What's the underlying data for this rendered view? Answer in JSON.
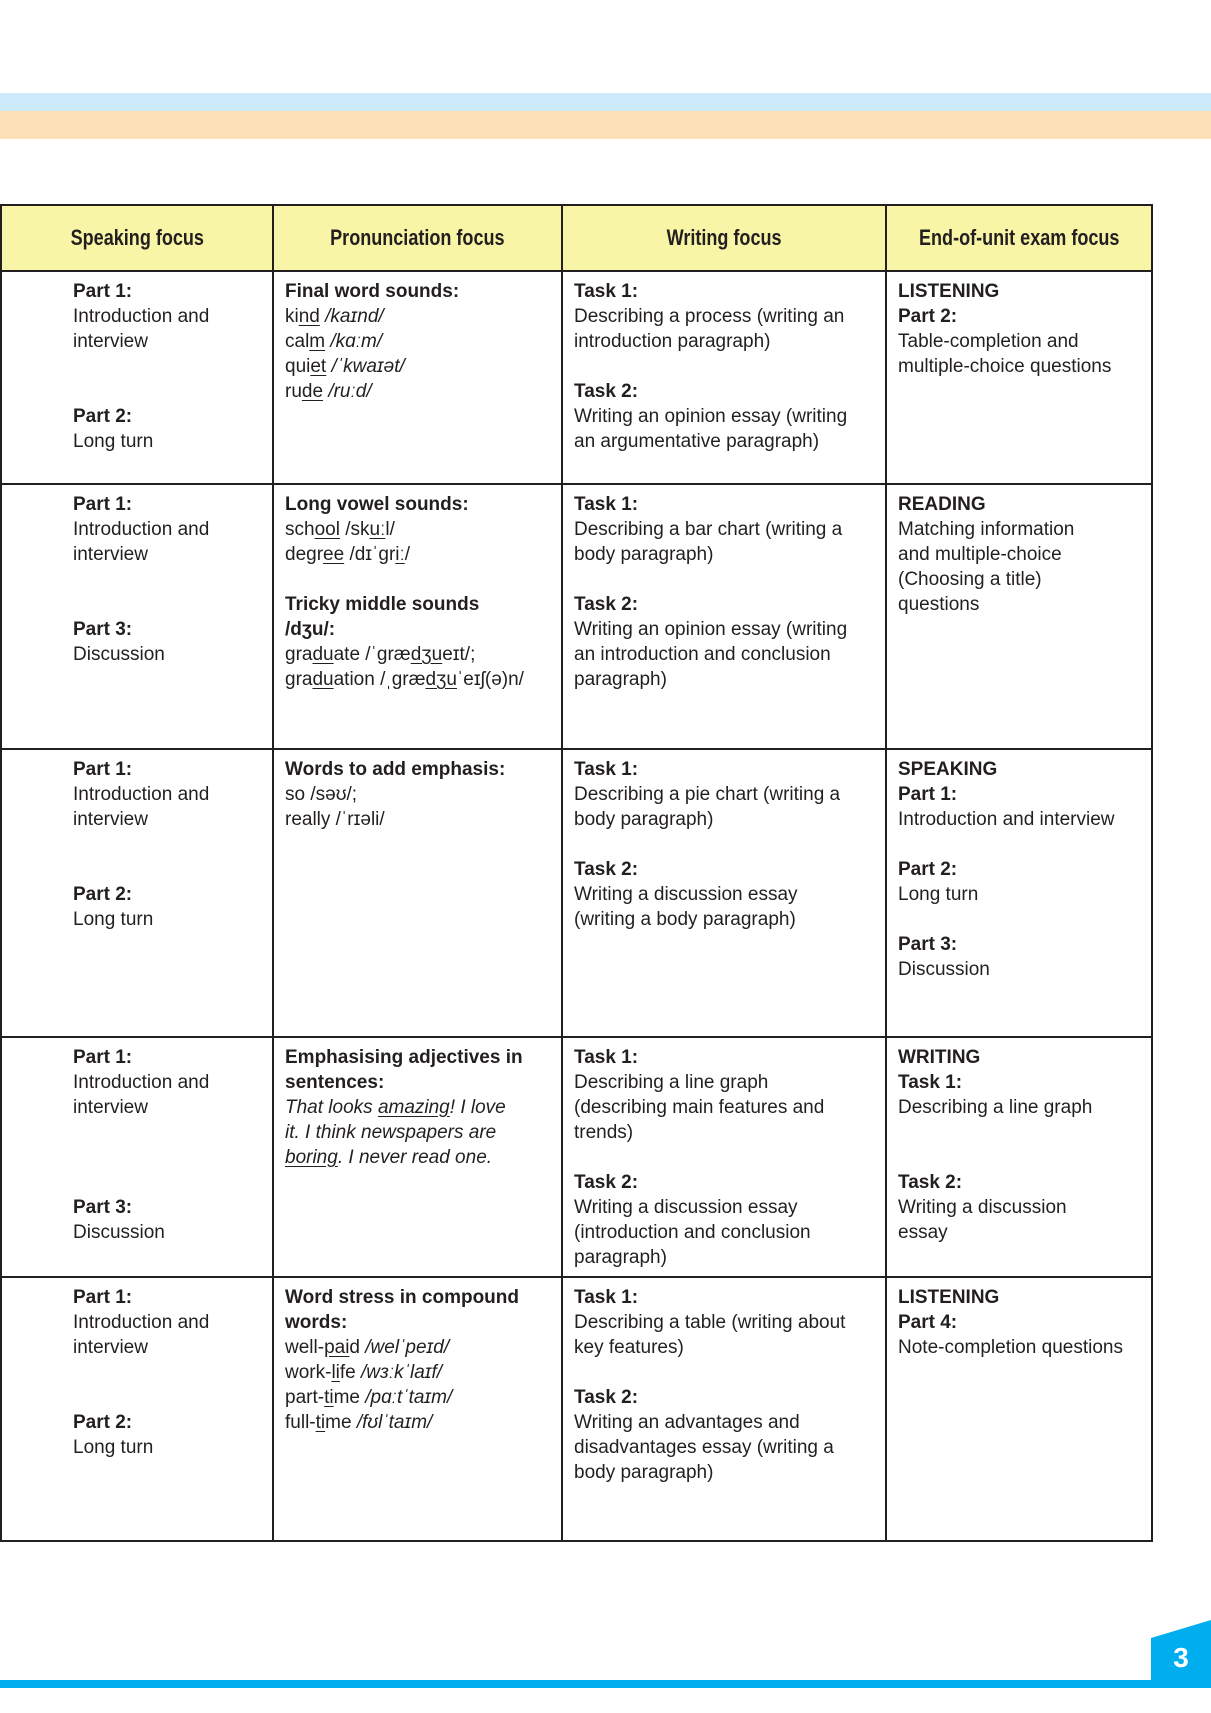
{
  "colors": {
    "band_blue": "#cdeafb",
    "band_peach": "#fde0b6",
    "header_fill": "#f8f5a6",
    "accent": "#00aeef"
  },
  "headers": [
    "Speaking focus",
    "Pronunciation focus",
    "Writing focus",
    "End-of-unit exam focus"
  ],
  "rows": [
    {
      "cells": [
        [
          [
            {
              "t": "Part 1:",
              "b": 1
            }
          ],
          [
            {
              "t": "Introduction and"
            }
          ],
          [
            {
              "t": "interview"
            }
          ],
          [],
          [],
          [
            {
              "t": "Part 2:",
              "b": 1
            }
          ],
          [
            {
              "t": "Long turn"
            }
          ]
        ],
        [
          [
            {
              "t": "Final word sounds:",
              "b": 1
            }
          ],
          [
            {
              "t": "ki"
            },
            {
              "t": "nd",
              "u": 1
            },
            {
              "t": " /kaɪnd/",
              "i": 1
            }
          ],
          [
            {
              "t": "cal"
            },
            {
              "t": "m",
              "u": 1
            },
            {
              "t": " /kɑːm/",
              "i": 1
            }
          ],
          [
            {
              "t": "qui"
            },
            {
              "t": "et",
              "u": 1
            },
            {
              "t": " /ˈkwaɪət/",
              "i": 1
            }
          ],
          [
            {
              "t": "ru"
            },
            {
              "t": "de",
              "u": 1
            },
            {
              "t": " /ruːd/",
              "i": 1
            }
          ]
        ],
        [
          [
            {
              "t": "Task 1:",
              "b": 1
            }
          ],
          [
            {
              "t": "Describing a process (writing an"
            }
          ],
          [
            {
              "t": "introduction paragraph)"
            }
          ],
          [],
          [
            {
              "t": "Task 2:",
              "b": 1
            }
          ],
          [
            {
              "t": "Writing an opinion essay (writing"
            }
          ],
          [
            {
              "t": "an argumentative paragraph)"
            }
          ]
        ],
        [
          [
            {
              "t": "LISTENING",
              "b": 1
            }
          ],
          [
            {
              "t": "Part 2:",
              "b": 1
            }
          ],
          [
            {
              "t": "Table-completion and"
            }
          ],
          [
            {
              "t": "multiple-choice questions"
            }
          ]
        ]
      ]
    },
    {
      "cells": [
        [
          [
            {
              "t": "Part 1:",
              "b": 1
            }
          ],
          [
            {
              "t": "Introduction and"
            }
          ],
          [
            {
              "t": "interview"
            }
          ],
          [],
          [],
          [
            {
              "t": "Part 3:",
              "b": 1
            }
          ],
          [
            {
              "t": "Discussion"
            }
          ]
        ],
        [
          [
            {
              "t": "Long vowel sounds:",
              "b": 1
            }
          ],
          [
            {
              "t": "sch"
            },
            {
              "t": "ool",
              "u": 1
            },
            {
              "t": " /sk"
            },
            {
              "t": "uː",
              "u": 1
            },
            {
              "t": "l/"
            }
          ],
          [
            {
              "t": "degr"
            },
            {
              "t": "ee",
              "u": 1
            },
            {
              "t": " /dɪˈgr"
            },
            {
              "t": "iː",
              "u": 1
            },
            {
              "t": "/"
            }
          ],
          [],
          [
            {
              "t": "Tricky middle sounds",
              "b": 1
            }
          ],
          [
            {
              "t": "/dʒu/:",
              "b": 1
            }
          ],
          [
            {
              "t": "gra"
            },
            {
              "t": "du",
              "u": 1
            },
            {
              "t": "ate /ˈgræ"
            },
            {
              "t": "dʒu",
              "u": 1
            },
            {
              "t": "eɪt/;"
            }
          ],
          [
            {
              "t": "gra"
            },
            {
              "t": "du",
              "u": 1
            },
            {
              "t": "ation /ˌgræ"
            },
            {
              "t": "dʒu",
              "u": 1
            },
            {
              "t": "ˈeɪʃ(ə)n/"
            }
          ]
        ],
        [
          [
            {
              "t": "Task 1:",
              "b": 1
            }
          ],
          [
            {
              "t": "Describing a bar chart (writing a"
            }
          ],
          [
            {
              "t": "body paragraph)"
            }
          ],
          [],
          [
            {
              "t": "Task 2:",
              "b": 1
            }
          ],
          [
            {
              "t": "Writing an opinion essay (writing"
            }
          ],
          [
            {
              "t": "an introduction and conclusion"
            }
          ],
          [
            {
              "t": "paragraph)"
            }
          ]
        ],
        [
          [
            {
              "t": "READING",
              "b": 1
            }
          ],
          [
            {
              "t": "Matching information"
            }
          ],
          [
            {
              "t": "and multiple-choice"
            }
          ],
          [
            {
              "t": "(Choosing a title)"
            }
          ],
          [
            {
              "t": "questions"
            }
          ]
        ]
      ]
    },
    {
      "cells": [
        [
          [
            {
              "t": "Part 1:",
              "b": 1
            }
          ],
          [
            {
              "t": "Introduction and"
            }
          ],
          [
            {
              "t": "interview"
            }
          ],
          [],
          [],
          [
            {
              "t": "Part 2:",
              "b": 1
            }
          ],
          [
            {
              "t": "Long turn"
            }
          ]
        ],
        [
          [
            {
              "t": "Words to add emphasis:",
              "b": 1
            }
          ],
          [
            {
              "t": "so /səʊ/;"
            }
          ],
          [
            {
              "t": "really /ˈrɪəli/"
            }
          ]
        ],
        [
          [
            {
              "t": "Task 1:",
              "b": 1
            }
          ],
          [
            {
              "t": "Describing a pie chart (writing a"
            }
          ],
          [
            {
              "t": "body paragraph)"
            }
          ],
          [],
          [
            {
              "t": "Task 2:",
              "b": 1
            }
          ],
          [
            {
              "t": "Writing a discussion essay"
            }
          ],
          [
            {
              "t": "(writing a body paragraph)"
            }
          ]
        ],
        [
          [
            {
              "t": "SPEAKING",
              "b": 1
            }
          ],
          [
            {
              "t": "Part 1:",
              "b": 1
            }
          ],
          [
            {
              "t": "Introduction and interview"
            }
          ],
          [],
          [
            {
              "t": "Part 2:",
              "b": 1
            }
          ],
          [
            {
              "t": "Long turn"
            }
          ],
          [],
          [
            {
              "t": "Part 3:",
              "b": 1
            }
          ],
          [
            {
              "t": "Discussion"
            }
          ]
        ]
      ]
    },
    {
      "cells": [
        [
          [
            {
              "t": "Part 1:",
              "b": 1
            }
          ],
          [
            {
              "t": "Introduction and"
            }
          ],
          [
            {
              "t": "interview"
            }
          ],
          [],
          [],
          [],
          [
            {
              "t": "Part 3:",
              "b": 1
            }
          ],
          [
            {
              "t": "Discussion"
            }
          ]
        ],
        [
          [
            {
              "t": "Emphasising adjectives in",
              "b": 1
            }
          ],
          [
            {
              "t": "sentences:",
              "b": 1
            }
          ],
          [
            {
              "t": "That looks ",
              "i": 1
            },
            {
              "t": "amazing",
              "i": 1,
              "u": 1
            },
            {
              "t": "! I love",
              "i": 1
            }
          ],
          [
            {
              "t": "it. I think newspapers are",
              "i": 1
            }
          ],
          [
            {
              "t": "boring",
              "i": 1,
              "u": 1
            },
            {
              "t": ". I never read one.",
              "i": 1
            }
          ]
        ],
        [
          [
            {
              "t": "Task 1:",
              "b": 1
            }
          ],
          [
            {
              "t": "Describing a line graph"
            }
          ],
          [
            {
              "t": "(describing main features and"
            }
          ],
          [
            {
              "t": "trends)"
            }
          ],
          [],
          [
            {
              "t": "Task 2:",
              "b": 1
            }
          ],
          [
            {
              "t": "Writing a discussion essay"
            }
          ],
          [
            {
              "t": "(introduction and conclusion"
            }
          ],
          [
            {
              "t": "paragraph)"
            }
          ]
        ],
        [
          [
            {
              "t": "WRITING",
              "b": 1
            }
          ],
          [
            {
              "t": "Task 1:",
              "b": 1
            }
          ],
          [
            {
              "t": "Describing a line graph"
            }
          ],
          [],
          [],
          [
            {
              "t": "Task 2:",
              "b": 1
            }
          ],
          [
            {
              "t": "Writing a discussion"
            }
          ],
          [
            {
              "t": "essay"
            }
          ]
        ]
      ]
    },
    {
      "cells": [
        [
          [
            {
              "t": "Part 1:",
              "b": 1
            }
          ],
          [
            {
              "t": "Introduction and"
            }
          ],
          [
            {
              "t": "interview"
            }
          ],
          [],
          [],
          [
            {
              "t": "Part 2:",
              "b": 1
            }
          ],
          [
            {
              "t": "Long turn"
            }
          ]
        ],
        [
          [
            {
              "t": "Word stress in compound",
              "b": 1
            }
          ],
          [
            {
              "t": "words:",
              "b": 1
            }
          ],
          [
            {
              "t": "well-"
            },
            {
              "t": "pai",
              "u": 1
            },
            {
              "t": "d "
            },
            {
              "t": "/welˈpeɪd/",
              "i": 1
            }
          ],
          [
            {
              "t": "work-"
            },
            {
              "t": "li",
              "u": 1
            },
            {
              "t": "fe "
            },
            {
              "t": "/wɜːkˈlaɪf/",
              "i": 1
            }
          ],
          [
            {
              "t": "part-"
            },
            {
              "t": "ti",
              "u": 1
            },
            {
              "t": "me "
            },
            {
              "t": "/pɑːtˈtaɪm/",
              "i": 1
            }
          ],
          [
            {
              "t": "full-"
            },
            {
              "t": "ti",
              "u": 1
            },
            {
              "t": "me "
            },
            {
              "t": "/fʊlˈtaɪm/",
              "i": 1
            }
          ]
        ],
        [
          [
            {
              "t": "Task 1:",
              "b": 1
            }
          ],
          [
            {
              "t": "Describing a table (writing about"
            }
          ],
          [
            {
              "t": "key features)"
            }
          ],
          [],
          [
            {
              "t": "Task 2:",
              "b": 1
            }
          ],
          [
            {
              "t": "Writing an advantages and"
            }
          ],
          [
            {
              "t": "disadvantages essay (writing a"
            }
          ],
          [
            {
              "t": "body paragraph)"
            }
          ]
        ],
        [
          [
            {
              "t": "LISTENING",
              "b": 1
            }
          ],
          [
            {
              "t": "Part 4:",
              "b": 1
            }
          ],
          [
            {
              "t": "Note-completion questions"
            }
          ]
        ]
      ]
    }
  ],
  "page_number": "3"
}
